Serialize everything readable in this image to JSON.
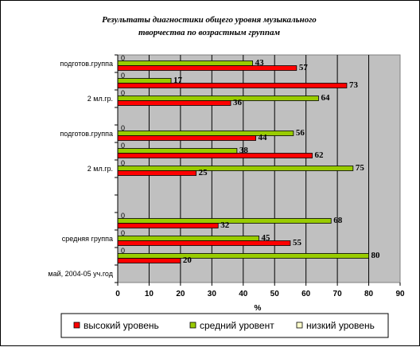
{
  "chart_data": {
    "type": "bar",
    "orientation": "horizontal",
    "title_line1": "Результаты диагностики общего уровня музыкального",
    "title_line2": "творчества по возрастным группам",
    "xlabel": "%",
    "xlim": [
      0,
      90
    ],
    "xticks": [
      "0",
      "10",
      "20",
      "30",
      "40",
      "50",
      "60",
      "70",
      "80",
      "90"
    ],
    "categories": [
      "подготов.группа",
      "",
      "2 мл.гр.",
      "",
      "подготов.группа",
      "",
      "2 мл.гр.",
      "",
      "",
      "",
      "средняя группа",
      "",
      "май, 2004-05 уч.год"
    ],
    "series": [
      {
        "name": "высокий уровень",
        "color": "#ff0000",
        "values": [
          57,
          73,
          36,
          null,
          44,
          62,
          25,
          null,
          null,
          32,
          55,
          20,
          null
        ]
      },
      {
        "name": "средний уровент",
        "color": "#99cc00",
        "values": [
          43,
          17,
          64,
          null,
          56,
          38,
          75,
          null,
          null,
          68,
          45,
          80,
          null
        ]
      },
      {
        "name": "низкий уровень",
        "color": "#ffffcc",
        "values": [
          0,
          0,
          0,
          null,
          0,
          0,
          0,
          null,
          null,
          0,
          0,
          0,
          null
        ]
      }
    ],
    "legend_position": "bottom",
    "grid": true
  }
}
